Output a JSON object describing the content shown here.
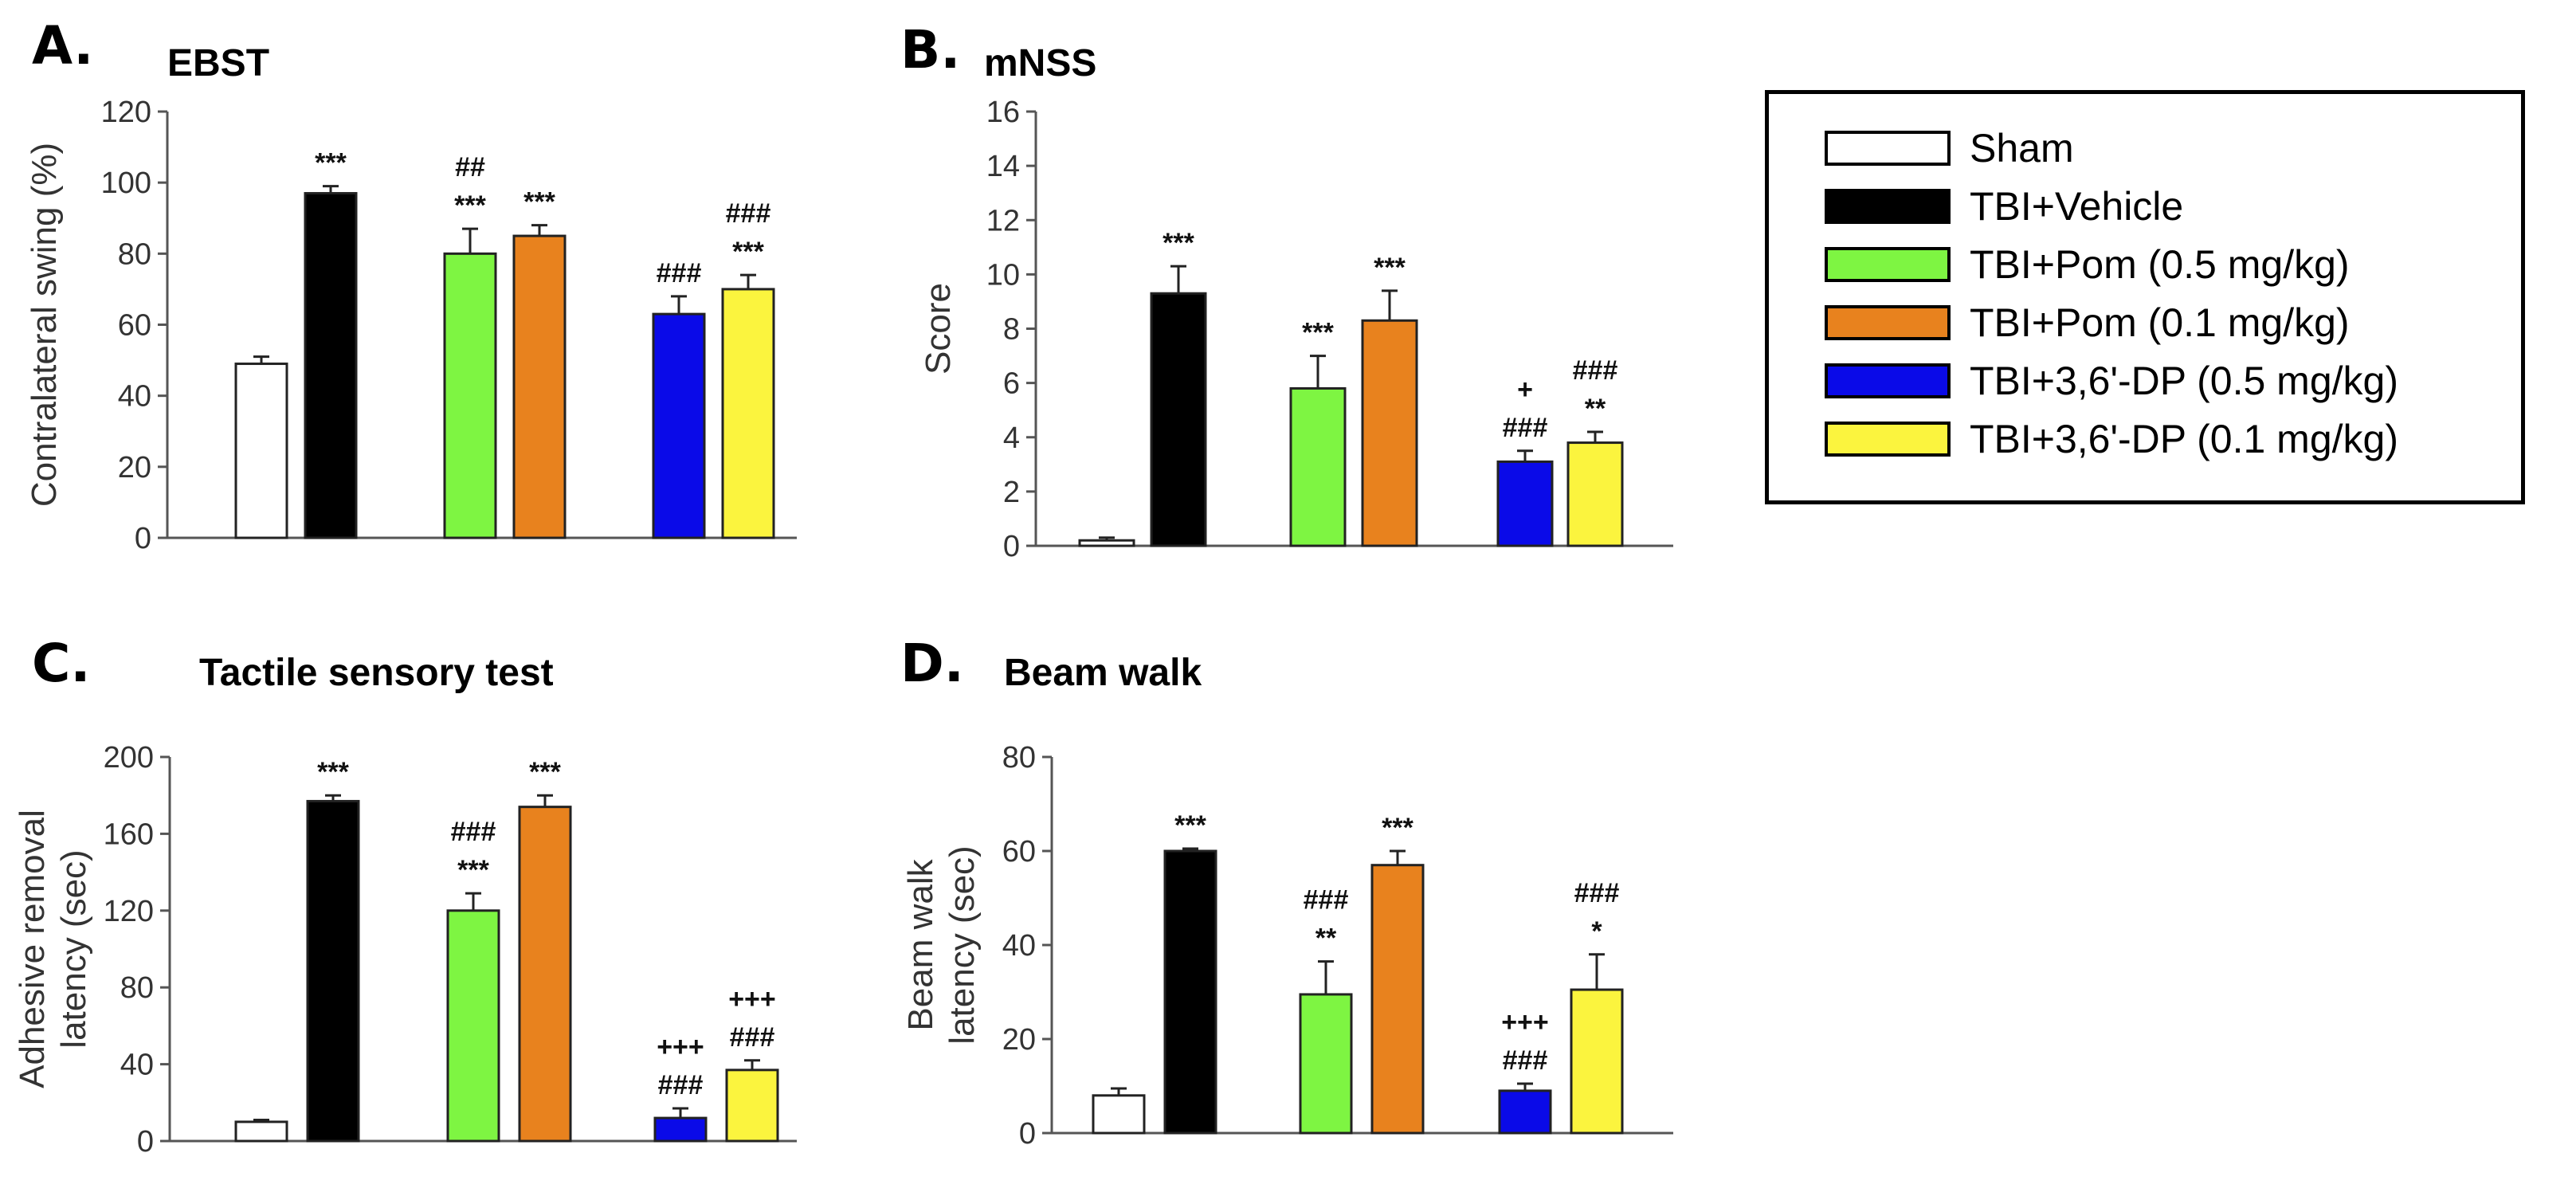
{
  "colors": {
    "Sham": "#ffffff",
    "TBI+Vehicle": "#000000",
    "TBI+Pom (0.5 mg/kg)": "#7ef542",
    "TBI+Pom (0.1 mg/kg)": "#e8821e",
    "TBI+3,6'-DP (0.5 mg/kg)": "#0a0ae8",
    "TBI+3,6'-DP (0.1 mg/kg)": "#fbf43e"
  },
  "legend": {
    "items": [
      {
        "label": "Sham",
        "color": "#ffffff"
      },
      {
        "label": "TBI+Vehicle",
        "color": "#000000"
      },
      {
        "label": "TBI+Pom (0.5 mg/kg)",
        "color": "#7ef542"
      },
      {
        "label": "TBI+Pom (0.1 mg/kg)",
        "color": "#e8821e"
      },
      {
        "label": "TBI+3,6'-DP (0.5 mg/kg)",
        "color": "#0a0ae8"
      },
      {
        "label": "TBI+3,6'-DP (0.1 mg/kg)",
        "color": "#fbf43e"
      }
    ]
  },
  "chart_data": [
    {
      "type": "bar",
      "panel": "A.",
      "title": "EBST",
      "ylabel": "Contralateral swing (%)",
      "xlabel": "",
      "ylim": [
        0,
        120
      ],
      "yticks": [
        0,
        20,
        40,
        60,
        80,
        100,
        120
      ],
      "categories": [
        "Sham",
        "TBI+Vehicle",
        "TBI+Pom (0.5 mg/kg)",
        "TBI+Pom (0.1 mg/kg)",
        "TBI+3,6'-DP (0.5 mg/kg)",
        "TBI+3,6'-DP (0.1 mg/kg)"
      ],
      "values": [
        49,
        97,
        80,
        85,
        63,
        70
      ],
      "errors": [
        2,
        2,
        7,
        3,
        5,
        4
      ],
      "annotations": [
        [],
        [
          "***"
        ],
        [
          "##",
          "***"
        ],
        [
          "***"
        ],
        [
          "###"
        ],
        [
          "###",
          "***"
        ]
      ]
    },
    {
      "type": "bar",
      "panel": "B.",
      "title": "mNSS",
      "ylabel": "Score",
      "xlabel": "",
      "ylim": [
        0,
        16
      ],
      "yticks": [
        0,
        2,
        4,
        6,
        8,
        10,
        12,
        14,
        16
      ],
      "categories": [
        "Sham",
        "TBI+Vehicle",
        "TBI+Pom (0.5 mg/kg)",
        "TBI+Pom (0.1 mg/kg)",
        "TBI+3,6'-DP (0.5 mg/kg)",
        "TBI+3,6'-DP (0.1 mg/kg)"
      ],
      "values": [
        0.2,
        9.3,
        5.8,
        8.3,
        3.1,
        3.8
      ],
      "errors": [
        0.1,
        1.0,
        1.2,
        1.1,
        0.4,
        0.4
      ],
      "annotations": [
        [],
        [
          "***"
        ],
        [
          "***"
        ],
        [
          "***"
        ],
        [
          "+",
          "###"
        ],
        [
          "###",
          "**"
        ]
      ]
    },
    {
      "type": "bar",
      "panel": "C.",
      "title": "Tactile sensory test",
      "ylabel": "Adhesive removal\nlatency (sec)",
      "xlabel": "",
      "ylim": [
        0,
        200
      ],
      "yticks": [
        0,
        40,
        80,
        120,
        160,
        200
      ],
      "categories": [
        "Sham",
        "TBI+Vehicle",
        "TBI+Pom (0.5 mg/kg)",
        "TBI+Pom (0.1 mg/kg)",
        "TBI+3,6'-DP (0.5 mg/kg)",
        "TBI+3,6'-DP (0.1 mg/kg)"
      ],
      "values": [
        10,
        177,
        120,
        174,
        12,
        37
      ],
      "errors": [
        1,
        3,
        9,
        6,
        5,
        5
      ],
      "annotations": [
        [],
        [
          "***"
        ],
        [
          "###",
          "***"
        ],
        [
          "***"
        ],
        [
          "+++",
          "###"
        ],
        [
          "+++",
          "###"
        ]
      ]
    },
    {
      "type": "bar",
      "panel": "D.",
      "title": "Beam walk",
      "ylabel": "Beam walk\nlatency (sec)",
      "xlabel": "",
      "ylim": [
        0,
        80
      ],
      "yticks": [
        0,
        20,
        40,
        60,
        80
      ],
      "categories": [
        "Sham",
        "TBI+Vehicle",
        "TBI+Pom (0.5 mg/kg)",
        "TBI+Pom (0.1 mg/kg)",
        "TBI+3,6'-DP (0.5 mg/kg)",
        "TBI+3,6'-DP (0.1 mg/kg)"
      ],
      "values": [
        8,
        60,
        29.5,
        57,
        9,
        30.5
      ],
      "errors": [
        1.5,
        0.5,
        7,
        3,
        1.5,
        7.5
      ],
      "annotations": [
        [],
        [
          "***"
        ],
        [
          "###",
          "**"
        ],
        [
          "***"
        ],
        [
          "+++",
          "###"
        ],
        [
          "###",
          "*"
        ]
      ]
    }
  ]
}
